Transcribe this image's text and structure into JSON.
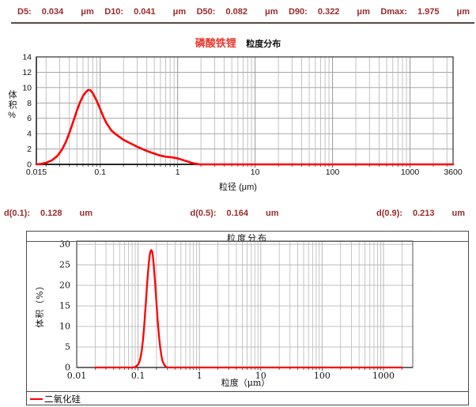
{
  "colors": {
    "curve": "#ff0000",
    "stats_text": "#9c2a2a",
    "title_red": "#e8382c",
    "separator": "#5b4747",
    "grid_major": "#999999",
    "grid_minor": "#b3b3b3",
    "grid_light": "#b8b8b8",
    "axis": "#111111",
    "frame": "#3e3e3e"
  },
  "stats_row1": {
    "items": [
      {
        "label": "D5:",
        "value": "0.034",
        "unit": "μm"
      },
      {
        "label": "D10:",
        "value": "0.041",
        "unit": "μm"
      },
      {
        "label": "D50:",
        "value": "0.082",
        "unit": "μm"
      },
      {
        "label": "D90:",
        "value": "0.322",
        "unit": "μm"
      },
      {
        "label": "Dmax:",
        "value": "1.975",
        "unit": "μm"
      }
    ]
  },
  "stats_row2": {
    "items": [
      {
        "label": "d(0.1):",
        "value": "0.128",
        "unit": "um"
      },
      {
        "label": "d(0.5):",
        "value": "0.164",
        "unit": "um"
      },
      {
        "label": "d(0.9):",
        "value": "0.213",
        "unit": "um"
      }
    ]
  },
  "chart1": {
    "title_material": "磷酸铁锂",
    "title_suffix": "粒度分布",
    "ylabel": "体积%",
    "xlabel": "粒径 (μm)"
  },
  "chart2": {
    "title": "粒度分布",
    "ylabel": "体积（%）",
    "xlabel": "粒度（μm）",
    "legend": "二氧化硅"
  },
  "chart_data": [
    {
      "type": "line",
      "title": "磷酸铁锂 粒度分布",
      "xlabel": "粒径 (μm)",
      "ylabel": "体积%",
      "xscale": "log",
      "xlim": [
        0.015,
        3600
      ],
      "ylim": [
        0,
        14
      ],
      "yticks": [
        0,
        2,
        4,
        6,
        8,
        10,
        12,
        14
      ],
      "xticks": [
        {
          "v": 0.015,
          "label": "0.015"
        },
        {
          "v": 0.1,
          "label": "0.1"
        },
        {
          "v": 1,
          "label": "1"
        },
        {
          "v": 10,
          "label": "10"
        },
        {
          "v": 100,
          "label": "100"
        },
        {
          "v": 1000,
          "label": "1000"
        },
        {
          "v": 3600,
          "label": "3600"
        }
      ],
      "grid": true,
      "legend_position": "none",
      "stats": {
        "D5": 0.034,
        "D10": 0.041,
        "D50": 0.082,
        "D90": 0.322,
        "Dmax": 1.975
      },
      "points": [
        [
          0.015,
          0
        ],
        [
          0.017,
          0.05
        ],
        [
          0.02,
          0.2
        ],
        [
          0.024,
          0.55
        ],
        [
          0.028,
          1.1
        ],
        [
          0.032,
          1.9
        ],
        [
          0.036,
          2.9
        ],
        [
          0.04,
          4.1
        ],
        [
          0.045,
          5.6
        ],
        [
          0.05,
          7.0
        ],
        [
          0.055,
          8.1
        ],
        [
          0.06,
          8.9
        ],
        [
          0.065,
          9.4
        ],
        [
          0.07,
          9.7
        ],
        [
          0.075,
          9.65
        ],
        [
          0.08,
          9.3
        ],
        [
          0.09,
          8.3
        ],
        [
          0.1,
          7.2
        ],
        [
          0.11,
          6.2
        ],
        [
          0.12,
          5.4
        ],
        [
          0.14,
          4.4
        ],
        [
          0.16,
          3.9
        ],
        [
          0.2,
          3.2
        ],
        [
          0.25,
          2.7
        ],
        [
          0.3,
          2.3
        ],
        [
          0.4,
          1.75
        ],
        [
          0.5,
          1.4
        ],
        [
          0.6,
          1.15
        ],
        [
          0.7,
          1.0
        ],
        [
          0.8,
          0.95
        ],
        [
          0.9,
          0.87
        ],
        [
          1.0,
          0.78
        ],
        [
          1.1,
          0.65
        ],
        [
          1.3,
          0.42
        ],
        [
          1.5,
          0.22
        ],
        [
          1.7,
          0.08
        ],
        [
          1.9,
          0.01
        ],
        [
          2.0,
          0
        ],
        [
          5,
          0
        ],
        [
          10,
          0
        ],
        [
          50,
          0
        ],
        [
          100,
          0
        ],
        [
          500,
          0
        ],
        [
          1000,
          0
        ],
        [
          3600,
          0
        ]
      ]
    },
    {
      "type": "line",
      "title": "粒度分布",
      "xlabel": "粒度（μm）",
      "ylabel": "体积（%）",
      "series_name": "二氧化硅",
      "xscale": "log",
      "xlim": [
        0.01,
        3000
      ],
      "ylim": [
        0,
        30.8
      ],
      "yticks": [
        0,
        5,
        10,
        15,
        20,
        25,
        30
      ],
      "xticks": [
        {
          "v": 0.01,
          "label": "0.01"
        },
        {
          "v": 0.1,
          "label": "0.1"
        },
        {
          "v": 1,
          "label": "1"
        },
        {
          "v": 10,
          "label": "10"
        },
        {
          "v": 100,
          "label": "100"
        },
        {
          "v": 1000,
          "label": "1000"
        }
      ],
      "grid": true,
      "legend_position": "bottom-left",
      "stats": {
        "d(0.1)": 0.128,
        "d(0.5)": 0.164,
        "d(0.9)": 0.213
      },
      "points": [
        [
          0.02,
          0
        ],
        [
          0.05,
          0
        ],
        [
          0.08,
          0
        ],
        [
          0.09,
          0.1
        ],
        [
          0.1,
          0.7
        ],
        [
          0.105,
          1.3
        ],
        [
          0.11,
          2.5
        ],
        [
          0.115,
          4.2
        ],
        [
          0.12,
          6.5
        ],
        [
          0.125,
          9.5
        ],
        [
          0.13,
          13
        ],
        [
          0.135,
          16.5
        ],
        [
          0.14,
          20
        ],
        [
          0.145,
          23
        ],
        [
          0.15,
          25.5
        ],
        [
          0.155,
          27.4
        ],
        [
          0.16,
          28.4
        ],
        [
          0.165,
          28.6
        ],
        [
          0.17,
          28.2
        ],
        [
          0.175,
          27
        ],
        [
          0.18,
          25
        ],
        [
          0.19,
          20.5
        ],
        [
          0.2,
          15.5
        ],
        [
          0.21,
          11
        ],
        [
          0.22,
          7.5
        ],
        [
          0.23,
          4.8
        ],
        [
          0.24,
          2.9
        ],
        [
          0.25,
          1.6
        ],
        [
          0.27,
          0.5
        ],
        [
          0.29,
          0.1
        ],
        [
          0.3,
          0
        ],
        [
          1,
          0
        ],
        [
          10,
          0
        ],
        [
          100,
          0
        ],
        [
          1000,
          0
        ],
        [
          2000,
          0
        ]
      ]
    }
  ]
}
